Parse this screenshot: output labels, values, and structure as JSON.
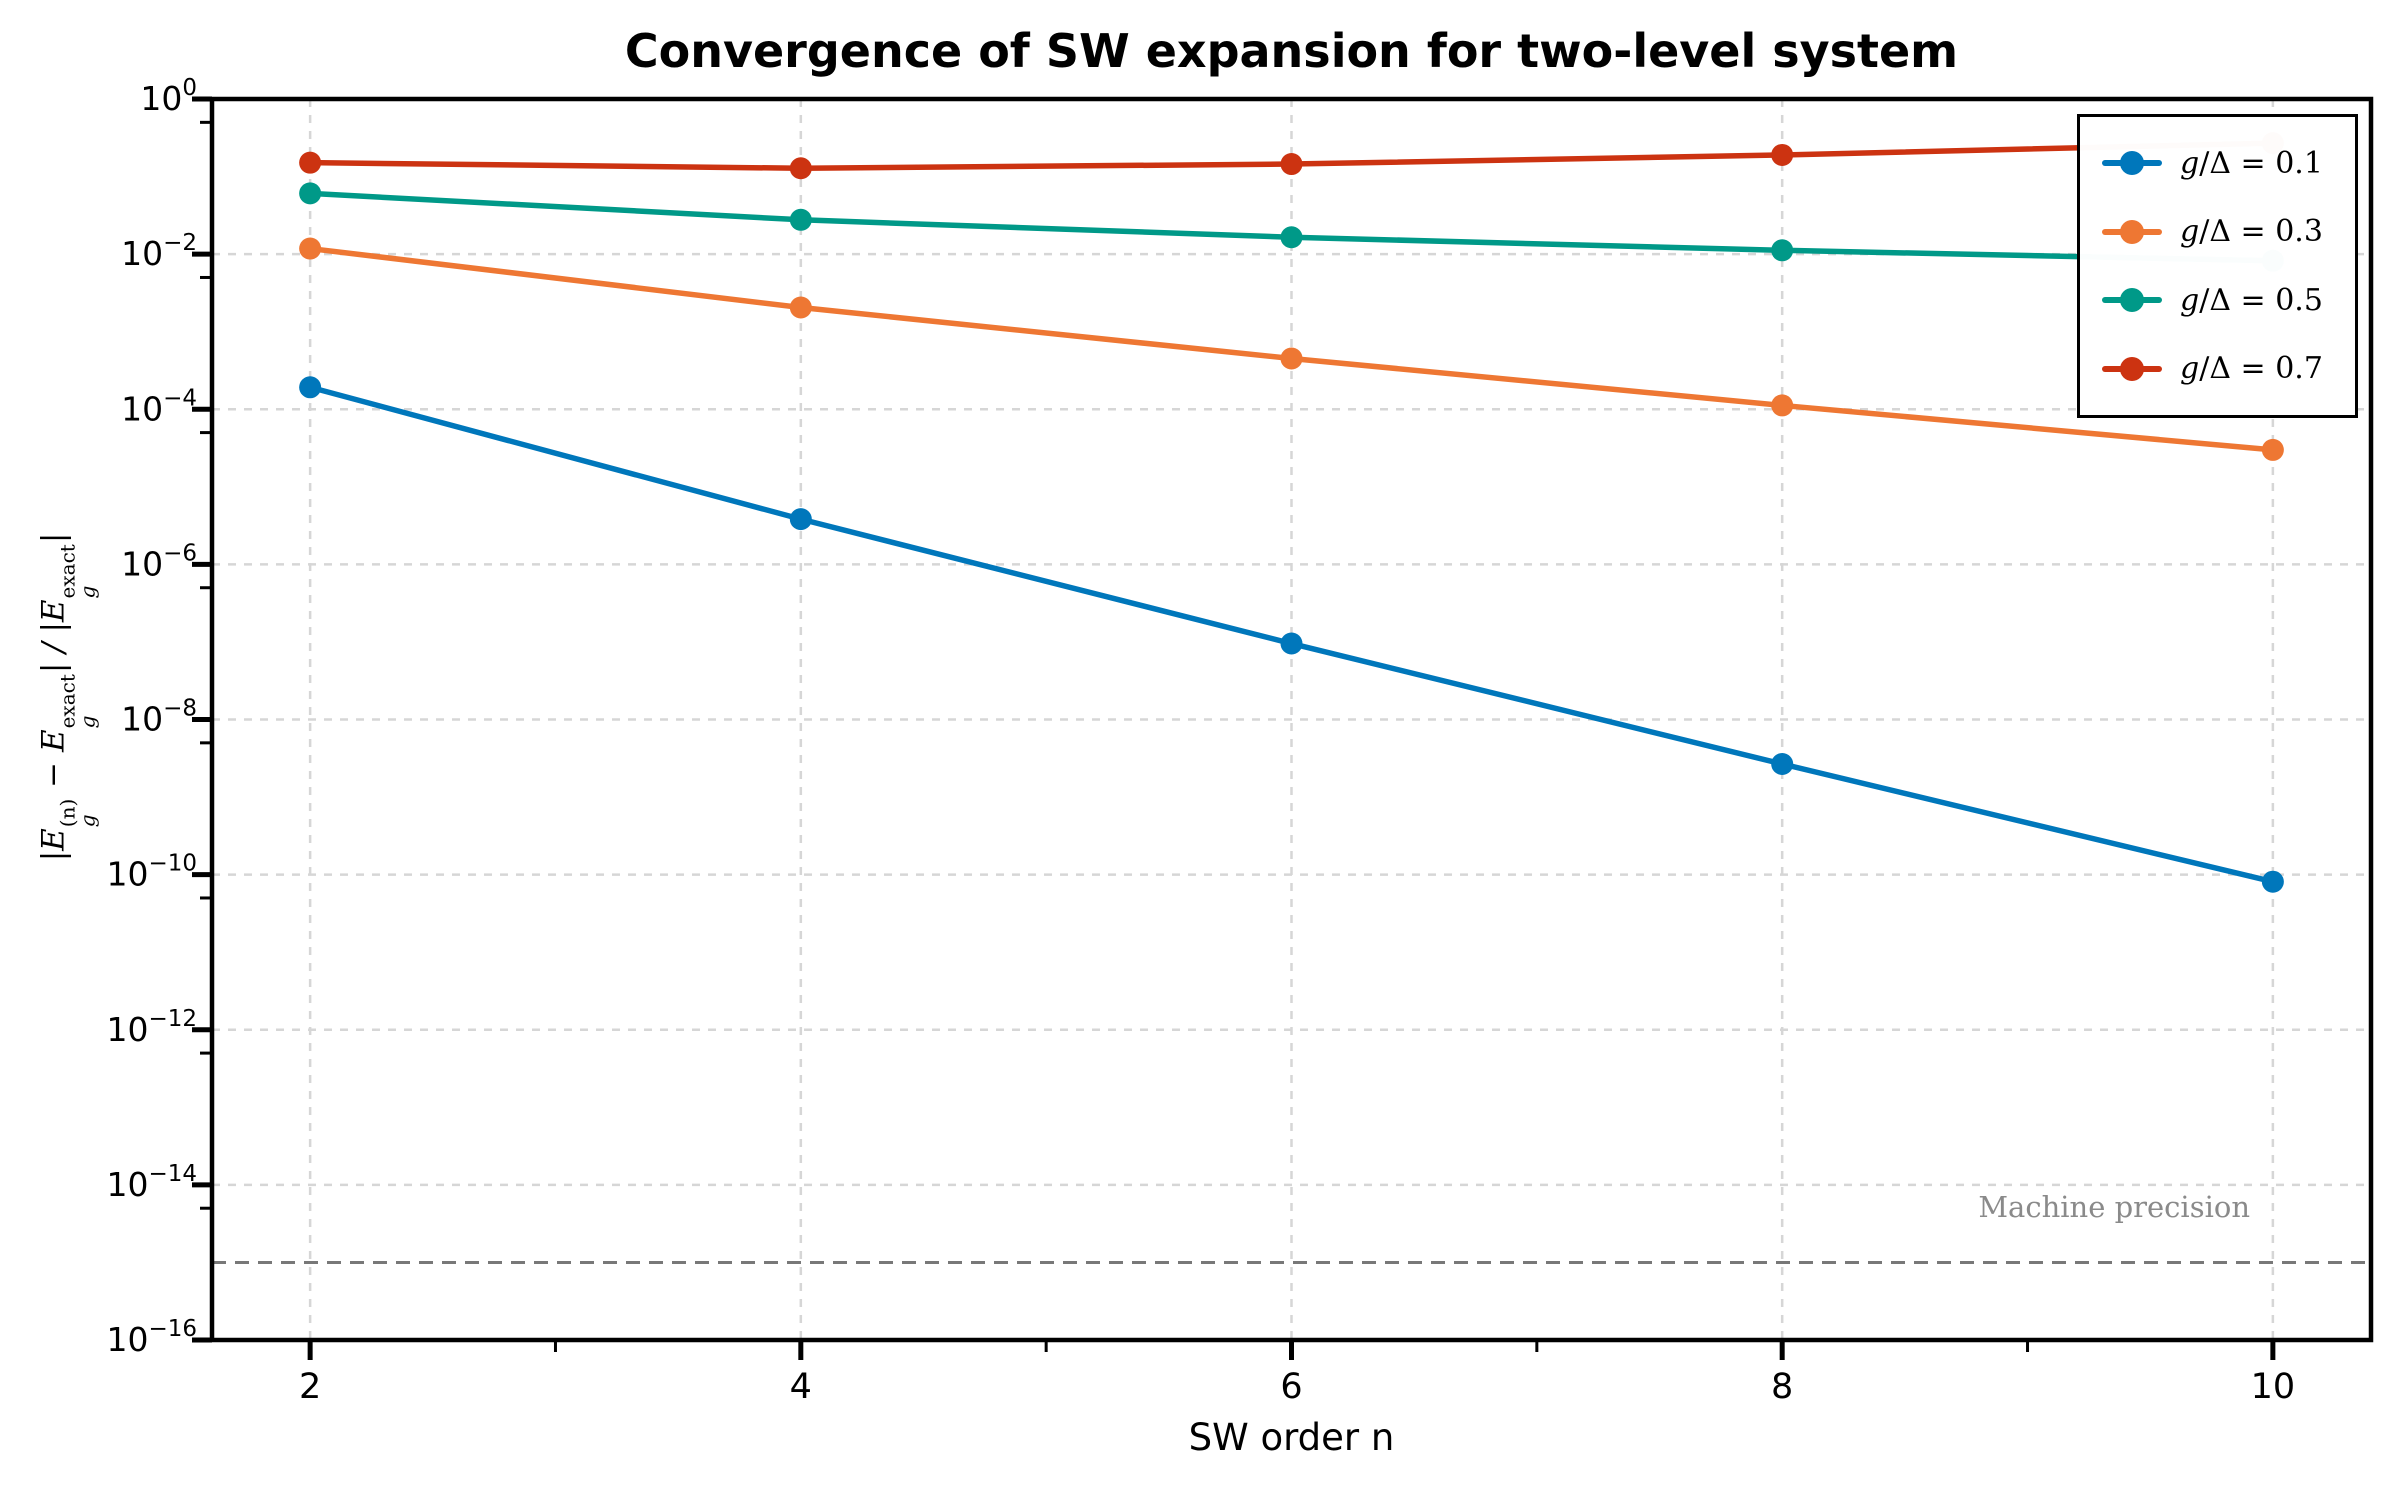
{
  "title": "Convergence of SW expansion for two-level system",
  "xlabel": "SW order n",
  "ylabel": "|E_g^(n) − E_g^exact| / |E_g^exact|",
  "ylabel_parts": [
    {
      "t": "|E"
    },
    {
      "sup": "(n)",
      "sub": "g"
    },
    {
      "t": " − E"
    },
    {
      "sup": "exact",
      "sub": "g"
    },
    {
      "t": "| / |E"
    },
    {
      "sup": "exact",
      "sub": "g"
    },
    {
      "t": "|"
    }
  ],
  "machine_precision_label": "Machine precision",
  "chart_data": {
    "type": "line",
    "title": "Convergence of SW expansion for two-level system",
    "xlabel": "SW order n",
    "ylabel": "|E_g^(n) − E_g^exact| / |E_g^exact|",
    "x": [
      2,
      4,
      6,
      8,
      10
    ],
    "xticks": [
      2,
      4,
      6,
      8,
      10
    ],
    "xminor": [
      3,
      5,
      7,
      9
    ],
    "ytick_exponents": [
      0,
      -2,
      -4,
      -6,
      -8,
      -10,
      -12,
      -14,
      -16
    ],
    "xlim": [
      1.6,
      10.4
    ],
    "ylim": [
      1e-16,
      1
    ],
    "yscale": "log",
    "grid": true,
    "legend_position": "upper right",
    "series": [
      {
        "name": "g/Δ = 0.1",
        "color": "#0077BB",
        "values": [
          0.000192,
          3.83e-06,
          9.54e-08,
          2.67e-09,
          8.1e-11
        ]
      },
      {
        "name": "g/Δ = 0.3",
        "color": "#EE7733",
        "values": [
          0.0118,
          0.00205,
          0.000451,
          0.000112,
          2.99e-05
        ]
      },
      {
        "name": "g/Δ = 0.5",
        "color": "#009988",
        "values": [
          0.0607,
          0.0277,
          0.0165,
          0.0112,
          0.0082
        ]
      },
      {
        "name": "g/Δ = 0.7",
        "color": "#CC3311",
        "values": [
          0.151,
          0.128,
          0.145,
          0.19,
          0.27
        ]
      }
    ],
    "machine_precision": {
      "value": 1e-15,
      "label": "Machine precision"
    },
    "colors": {
      "grid": "#d6d6d6",
      "machine_precision_line": "#787878",
      "axes": "#000000",
      "annotation_text": "#8a8a8a"
    }
  }
}
